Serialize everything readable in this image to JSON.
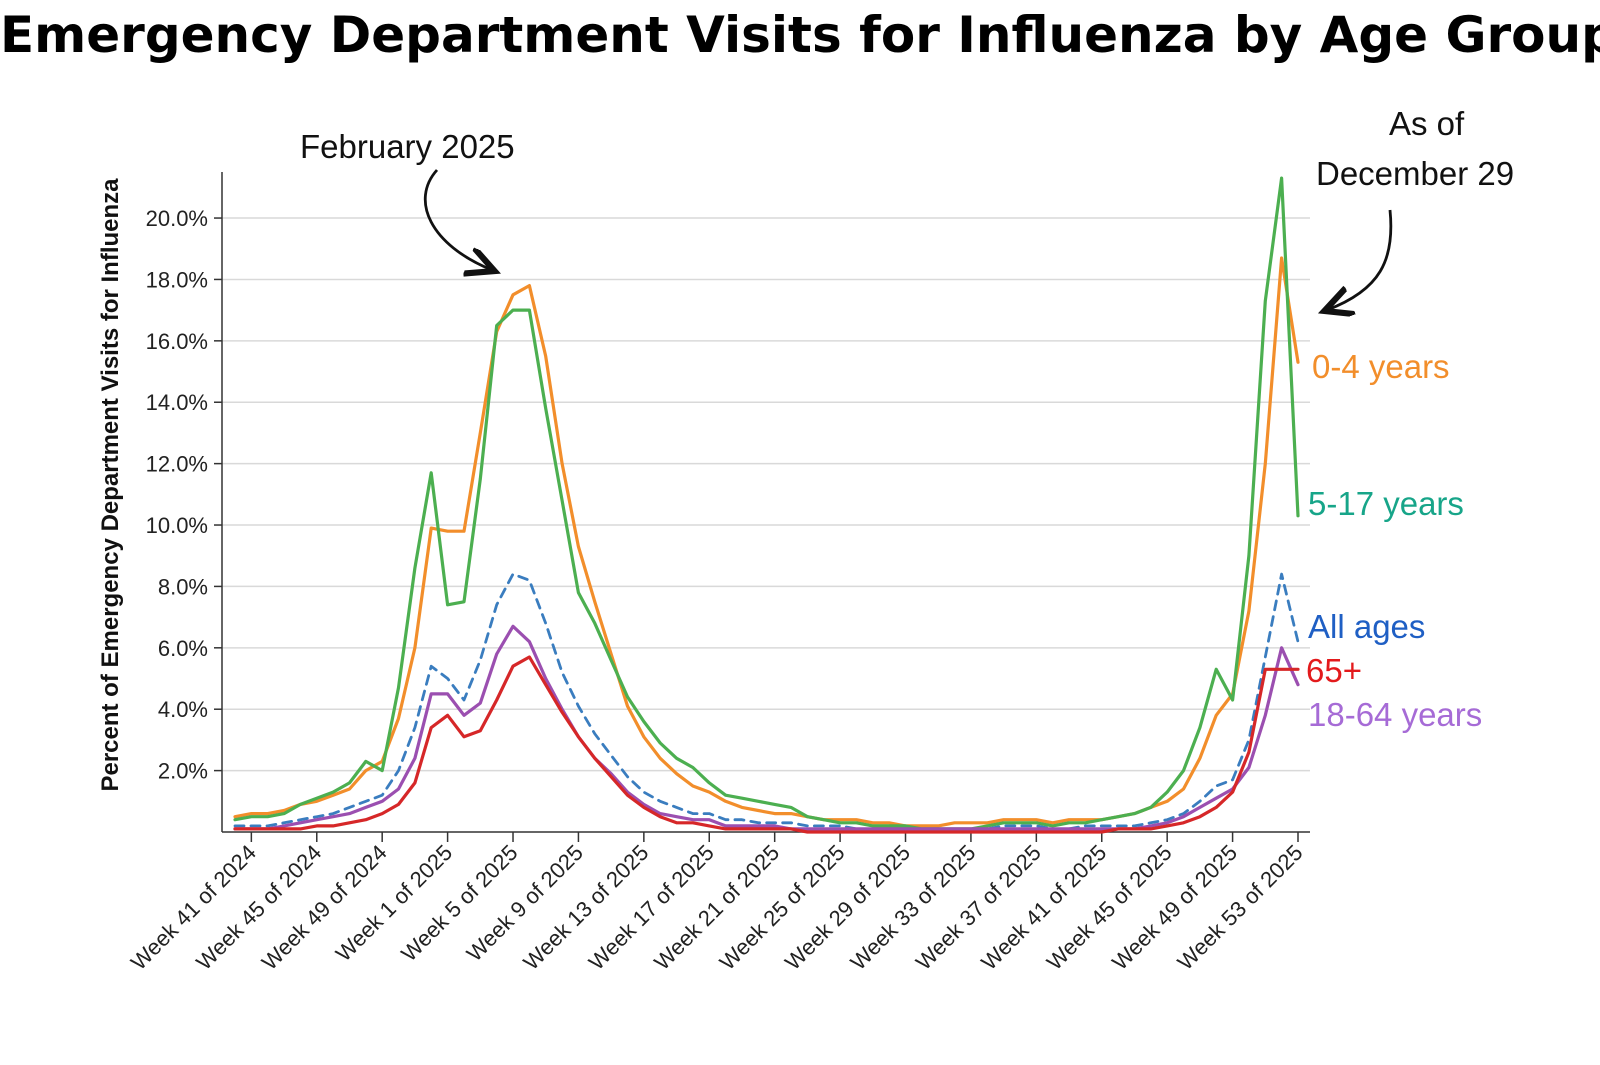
{
  "chart_data": {
    "type": "line",
    "title": "Emergency Department Visits for Influenza by Age Group",
    "xlabel": "",
    "ylabel": "Percent of Emergency Department Visits for Influenza",
    "ylim": [
      0,
      21.5
    ],
    "yticks": [
      2,
      4,
      6,
      8,
      10,
      12,
      14,
      16,
      18,
      20
    ],
    "ytick_labels": [
      "2.0%",
      "4.0%",
      "6.0%",
      "8.0%",
      "10.0%",
      "12.0%",
      "14.0%",
      "16.0%",
      "18.0%",
      "20.0%"
    ],
    "x_count": 66,
    "xticks": [
      2,
      6,
      10,
      14,
      18,
      22,
      26,
      30,
      34,
      38,
      42,
      46,
      50,
      54,
      58,
      62,
      66
    ],
    "xtick_labels": [
      "Week 41 of 2024",
      "Week 45 of 2024",
      "Week 49 of 2024",
      "Week 1 of 2025",
      "Week 5 of 2025",
      "Week 9 of 2025",
      "Week 13 of 2025",
      "Week 17 of 2025",
      "Week 21 of 2025",
      "Week 25 of 2025",
      "Week 29 of 2025",
      "Week 33 of 2025",
      "Week 37 of 2025",
      "Week 41 of 2025",
      "Week 45 of 2025",
      "Week 49 of 2025",
      "Week 53 of 2025"
    ],
    "series": [
      {
        "name": "0-4 years",
        "color": "#f28e2b",
        "dash": false,
        "values": [
          0.5,
          0.6,
          0.6,
          0.7,
          0.9,
          1.0,
          1.2,
          1.4,
          2.0,
          2.3,
          3.7,
          6.0,
          9.9,
          9.8,
          9.8,
          13.0,
          16.3,
          17.5,
          17.8,
          15.5,
          12.0,
          9.3,
          7.5,
          5.8,
          4.1,
          3.1,
          2.4,
          1.9,
          1.5,
          1.3,
          1.0,
          0.8,
          0.7,
          0.6,
          0.6,
          0.5,
          0.4,
          0.4,
          0.4,
          0.3,
          0.3,
          0.2,
          0.2,
          0.2,
          0.3,
          0.3,
          0.3,
          0.4,
          0.4,
          0.4,
          0.3,
          0.4,
          0.4,
          0.4,
          0.5,
          0.6,
          0.8,
          1.0,
          1.4,
          2.4,
          3.8,
          4.5,
          7.2,
          12.0,
          18.7,
          15.3
        ]
      },
      {
        "name": "5-17 years",
        "color": "#4caf50",
        "dash": false,
        "values": [
          0.4,
          0.5,
          0.5,
          0.6,
          0.9,
          1.1,
          1.3,
          1.6,
          2.3,
          2.0,
          4.7,
          8.6,
          11.7,
          7.4,
          7.5,
          11.5,
          16.5,
          17.0,
          17.0,
          13.8,
          10.8,
          7.8,
          6.8,
          5.6,
          4.4,
          3.6,
          2.9,
          2.4,
          2.1,
          1.6,
          1.2,
          1.1,
          1.0,
          0.9,
          0.8,
          0.5,
          0.4,
          0.3,
          0.3,
          0.2,
          0.2,
          0.2,
          0.1,
          0.1,
          0.1,
          0.1,
          0.2,
          0.3,
          0.3,
          0.3,
          0.2,
          0.3,
          0.3,
          0.4,
          0.5,
          0.6,
          0.8,
          1.3,
          2.0,
          3.4,
          5.3,
          4.3,
          9.0,
          17.3,
          21.3,
          10.3
        ]
      },
      {
        "name": "All ages",
        "color": "#3a7dbf",
        "dash": true,
        "values": [
          0.2,
          0.2,
          0.2,
          0.3,
          0.4,
          0.5,
          0.6,
          0.8,
          1.0,
          1.2,
          2.0,
          3.4,
          5.4,
          5.0,
          4.3,
          5.6,
          7.4,
          8.4,
          8.2,
          6.8,
          5.2,
          4.1,
          3.2,
          2.5,
          1.8,
          1.3,
          1.0,
          0.8,
          0.6,
          0.6,
          0.4,
          0.4,
          0.3,
          0.3,
          0.3,
          0.2,
          0.2,
          0.2,
          0.1,
          0.1,
          0.1,
          0.1,
          0.1,
          0.1,
          0.1,
          0.1,
          0.1,
          0.2,
          0.2,
          0.2,
          0.1,
          0.1,
          0.2,
          0.2,
          0.2,
          0.2,
          0.3,
          0.4,
          0.6,
          1.0,
          1.5,
          1.7,
          3.0,
          5.7,
          8.4,
          6.2
        ]
      },
      {
        "name": "18-64 years",
        "color": "#9b4fb0",
        "dash": false,
        "values": [
          0.1,
          0.1,
          0.1,
          0.2,
          0.3,
          0.4,
          0.5,
          0.6,
          0.8,
          1.0,
          1.4,
          2.4,
          4.5,
          4.5,
          3.8,
          4.2,
          5.8,
          6.7,
          6.2,
          5.0,
          4.0,
          3.1,
          2.4,
          1.9,
          1.3,
          0.9,
          0.6,
          0.5,
          0.4,
          0.4,
          0.2,
          0.2,
          0.2,
          0.2,
          0.1,
          0.1,
          0.1,
          0.1,
          0.1,
          0.1,
          0.1,
          0.1,
          0.1,
          0.1,
          0.1,
          0.1,
          0.1,
          0.1,
          0.1,
          0.1,
          0.1,
          0.1,
          0.1,
          0.1,
          0.1,
          0.1,
          0.2,
          0.3,
          0.5,
          0.8,
          1.1,
          1.4,
          2.1,
          3.8,
          6.0,
          4.8
        ]
      },
      {
        "name": "65+",
        "color": "#d62728",
        "dash": false,
        "values": [
          0.1,
          0.1,
          0.1,
          0.1,
          0.1,
          0.2,
          0.2,
          0.3,
          0.4,
          0.6,
          0.9,
          1.6,
          3.4,
          3.8,
          3.1,
          3.3,
          4.3,
          5.4,
          5.7,
          4.8,
          3.9,
          3.1,
          2.4,
          1.8,
          1.2,
          0.8,
          0.5,
          0.3,
          0.3,
          0.2,
          0.1,
          0.1,
          0.1,
          0.1,
          0.1,
          0.0,
          0.0,
          0.0,
          0.0,
          0.0,
          0.0,
          0.0,
          0.0,
          0.0,
          0.0,
          0.0,
          0.0,
          0.0,
          0.0,
          0.0,
          0.0,
          0.0,
          0.0,
          0.0,
          0.1,
          0.1,
          0.1,
          0.2,
          0.3,
          0.5,
          0.8,
          1.3,
          2.6,
          5.3,
          5.3,
          5.3
        ]
      }
    ],
    "annotations": [
      {
        "text": "February 2025",
        "target_x": 18.2,
        "target_y": 18.0
      },
      {
        "text_lines": [
          "As of",
          "December 29"
        ],
        "target_x": 66.0,
        "target_y": 16.8
      }
    ]
  }
}
